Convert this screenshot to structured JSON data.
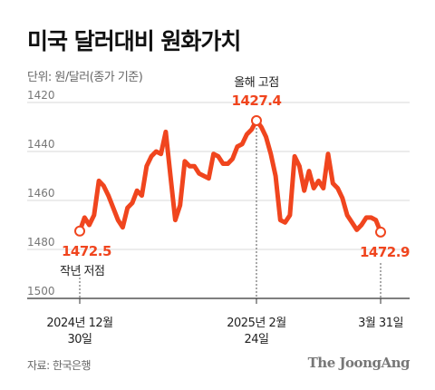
{
  "title": "미국 달러대비 원화가치",
  "subtitle": "단위: 원/달러(종가 기준)",
  "source": "자료: 한국은행",
  "brand": "The JoongAng",
  "colors": {
    "line": "#f0451e",
    "grid": "#d9d9d9",
    "axis": "#333333",
    "label": "#777777",
    "annotation": "#222222"
  },
  "chart_data": {
    "type": "line",
    "y_axis": {
      "reversed": true,
      "ylim": [
        1500,
        1420
      ],
      "ticks": [
        1420,
        1440,
        1460,
        1480,
        1500
      ]
    },
    "x_labels": [
      {
        "lines": [
          "2024년 12월",
          "30일"
        ]
      },
      {
        "lines": [
          "2025년 2월",
          "24일"
        ]
      },
      {
        "lines": [
          "3월 31일"
        ]
      }
    ],
    "annotations": [
      {
        "value": "1472.5",
        "note": "작년 저점"
      },
      {
        "value": "1427.4",
        "note": "올해 고점"
      },
      {
        "value": "1472.9",
        "note": ""
      }
    ],
    "series": [
      {
        "values": [
          1472.5,
          1467,
          1470,
          1466,
          1452,
          1454,
          1458,
          1463,
          1468,
          1471,
          1463,
          1461,
          1456,
          1458,
          1446,
          1442,
          1440,
          1441,
          1432,
          1450,
          1468,
          1462,
          1444,
          1446,
          1446,
          1449,
          1450,
          1451,
          1441,
          1442,
          1445,
          1445,
          1443,
          1438,
          1437,
          1433,
          1431,
          1427.4,
          1430,
          1434,
          1441,
          1450,
          1468,
          1469,
          1466,
          1442,
          1446,
          1456,
          1448,
          1455,
          1452,
          1455,
          1441,
          1453,
          1455,
          1459,
          1466,
          1469,
          1472,
          1470,
          1467,
          1467,
          1468,
          1472.9
        ]
      }
    ]
  }
}
